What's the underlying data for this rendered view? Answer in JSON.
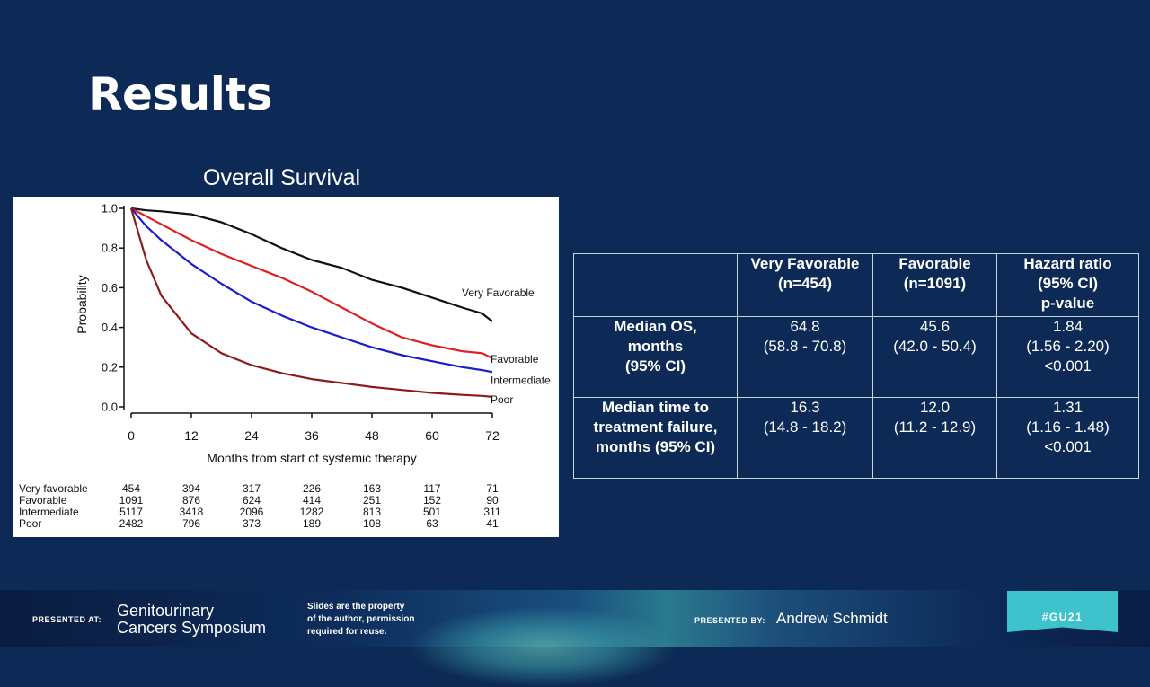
{
  "slide_title": "Results",
  "chart_data": {
    "type": "line",
    "title": "Overall Survival",
    "xlabel": "Months from start of systemic therapy",
    "ylabel": "Probability",
    "xlim": [
      0,
      72
    ],
    "ylim": [
      0,
      1
    ],
    "xticks": [
      "0",
      "12",
      "24",
      "36",
      "48",
      "60",
      "72"
    ],
    "yticks": [
      "0.0",
      "0.2",
      "0.4",
      "0.6",
      "0.8",
      "1.0"
    ],
    "x": [
      0,
      3,
      6,
      12,
      18,
      24,
      30,
      36,
      42,
      48,
      54,
      60,
      66,
      70,
      72
    ],
    "series": [
      {
        "name": "Very Favorable",
        "color": "#111111",
        "values": [
          1.0,
          0.99,
          0.985,
          0.97,
          0.93,
          0.87,
          0.8,
          0.74,
          0.7,
          0.64,
          0.6,
          0.55,
          0.5,
          0.47,
          0.43
        ]
      },
      {
        "name": "Favorable",
        "color": "#e01f1f",
        "values": [
          1.0,
          0.96,
          0.92,
          0.84,
          0.77,
          0.71,
          0.65,
          0.58,
          0.5,
          0.42,
          0.35,
          0.31,
          0.28,
          0.27,
          0.245
        ]
      },
      {
        "name": "Intermediate",
        "color": "#1c1ccc",
        "values": [
          1.0,
          0.91,
          0.84,
          0.72,
          0.62,
          0.53,
          0.46,
          0.4,
          0.35,
          0.3,
          0.26,
          0.23,
          0.2,
          0.185,
          0.175
        ]
      },
      {
        "name": "Poor",
        "color": "#8b1c1c",
        "values": [
          1.0,
          0.74,
          0.56,
          0.37,
          0.27,
          0.21,
          0.17,
          0.14,
          0.12,
          0.1,
          0.085,
          0.07,
          0.06,
          0.055,
          0.05
        ]
      }
    ],
    "risk_table": {
      "labels": [
        "Very favorable",
        "Favorable",
        "Intermediate",
        "Poor"
      ],
      "values": [
        [
          "454",
          "394",
          "317",
          "226",
          "163",
          "117",
          "71"
        ],
        [
          "1091",
          "876",
          "624",
          "414",
          "251",
          "152",
          "90"
        ],
        [
          "5117",
          "3418",
          "2096",
          "1282",
          "813",
          "501",
          "311"
        ],
        [
          "2482",
          "796",
          "373",
          "189",
          "108",
          "63",
          "41"
        ]
      ]
    }
  },
  "table": {
    "header": [
      "",
      "Very Favorable\n(n=454)",
      "Favorable\n(n=1091)",
      "Hazard ratio\n(95% CI)\np-value"
    ],
    "rows": [
      [
        "Median OS,\nmonths\n(95% CI)",
        "64.8\n(58.8 - 70.8)",
        "45.6\n(42.0 - 50.4)",
        "1.84\n(1.56 - 2.20)\n<0.001"
      ],
      [
        "Median time to\ntreatment failure,\nmonths (95% CI)",
        "16.3\n(14.8 - 18.2)",
        "12.0\n(11.2 - 12.9)",
        "1.31\n(1.16 - 1.48)\n<0.001"
      ]
    ]
  },
  "footer": {
    "presented_at_label": "PRESENTED AT:",
    "symposium_line1": "Genitourinary",
    "symposium_line2": "Cancers Symposium",
    "note_line1": "Slides are the property",
    "note_line2": "of the author, permission",
    "note_line3": "required for reuse.",
    "presented_by_label": "PRESENTED BY:",
    "presenter": "Andrew Schmidt",
    "hashtag": "#GU21"
  }
}
